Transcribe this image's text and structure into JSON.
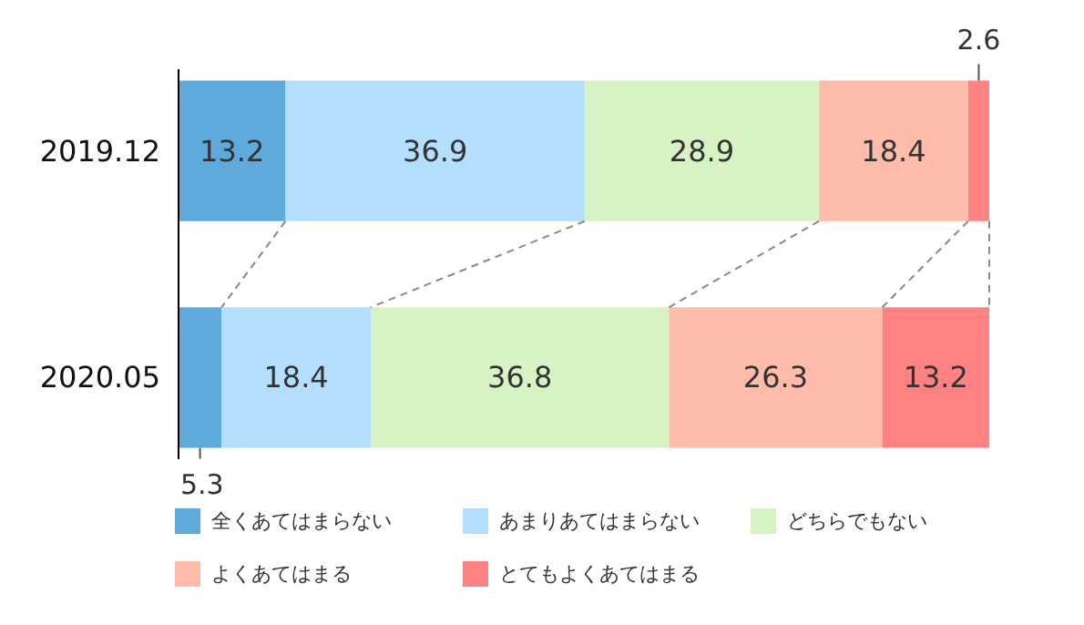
{
  "chart_data": {
    "type": "bar",
    "orientation": "horizontal",
    "stacked": true,
    "categories": [
      "2019.12",
      "2020.05"
    ],
    "series": [
      {
        "name": "全くあてはまらない",
        "color": "#5faadc",
        "values": [
          13.2,
          5.3
        ]
      },
      {
        "name": "あまりあてはまらない",
        "color": "#b4defd",
        "values": [
          36.9,
          18.4
        ]
      },
      {
        "name": "どちらでもない",
        "color": "#d7f2c3",
        "values": [
          28.9,
          36.8
        ]
      },
      {
        "name": "よくあてはまる",
        "color": "#ffbcaa",
        "values": [
          18.4,
          26.3
        ]
      },
      {
        "name": "とてもよくあてはまる",
        "color": "#ff8282",
        "values": [
          2.6,
          13.2
        ]
      }
    ],
    "xlim": [
      0,
      100
    ],
    "tick_labels": "y",
    "data_labels": true,
    "legend": "bottom"
  }
}
